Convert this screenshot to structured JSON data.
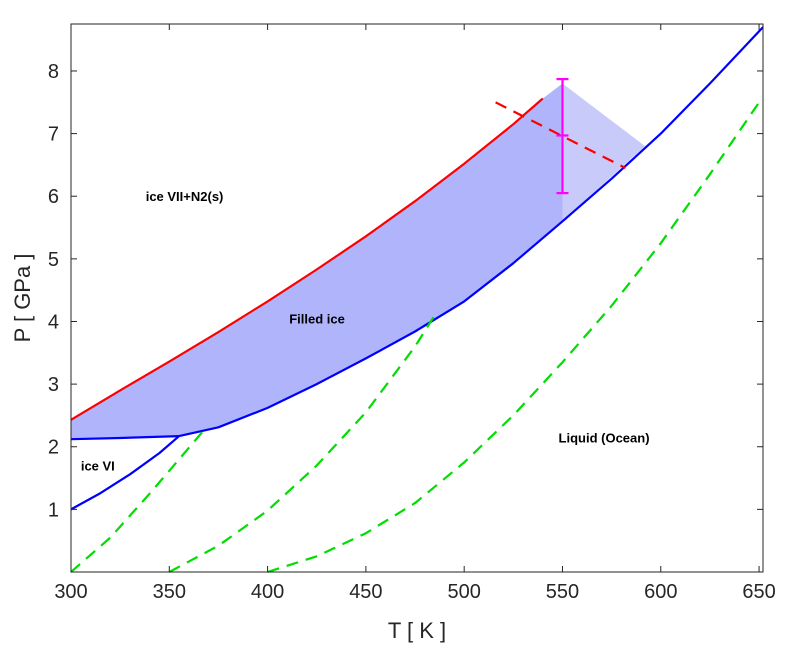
{
  "chart_data": {
    "type": "line",
    "title": "",
    "xlabel": "T [ K ]",
    "ylabel": "P [ GPa ]",
    "xlim": [
      300,
      652
    ],
    "ylim": [
      0,
      8.75
    ],
    "xticks": [
      300,
      350,
      400,
      450,
      500,
      550,
      600,
      650
    ],
    "yticks": [
      1,
      2,
      3,
      4,
      5,
      6,
      7,
      8
    ],
    "grid": false,
    "legend": "none",
    "region_labels": [
      {
        "text": "ice VII+N2(s)",
        "x": 338,
        "y": 6.0
      },
      {
        "text": "Filled ice",
        "x": 411,
        "y": 4.05
      },
      {
        "text": "ice VI",
        "x": 305,
        "y": 1.7
      },
      {
        "text": "Liquid (Ocean)",
        "x": 548,
        "y": 2.15
      }
    ],
    "series": [
      {
        "role": "upper-boundary",
        "color": "#ff0000",
        "style": "solid",
        "x": [
          300,
          325,
          350,
          375,
          400,
          425,
          450,
          475,
          500,
          525,
          540
        ],
        "y": [
          2.43,
          2.9,
          3.36,
          3.83,
          4.32,
          4.83,
          5.36,
          5.92,
          6.52,
          7.15,
          7.56
        ]
      },
      {
        "role": "lower-boundary",
        "color": "#0000ff",
        "style": "solid",
        "x": [
          355,
          375,
          400,
          425,
          450,
          475,
          500,
          525,
          550,
          575,
          600,
          625,
          652
        ],
        "y": [
          2.17,
          2.31,
          2.62,
          3.0,
          3.41,
          3.84,
          4.32,
          4.93,
          5.6,
          6.28,
          7.0,
          7.8,
          8.7
        ]
      },
      {
        "role": "ice-VI-boundary",
        "color": "#0000ff",
        "style": "solid",
        "x": [
          300,
          325,
          355
        ],
        "y": [
          2.12,
          2.14,
          2.17
        ]
      },
      {
        "role": "ice-VI-melting",
        "color": "#0000ff",
        "style": "solid",
        "x": [
          300,
          315,
          330,
          345,
          355
        ],
        "y": [
          1.0,
          1.26,
          1.56,
          1.9,
          2.17
        ]
      },
      {
        "role": "geotherm-1",
        "color": "#00dd00",
        "style": "dashed",
        "x": [
          300,
          320,
          340,
          355,
          368
        ],
        "y": [
          0.0,
          0.55,
          1.25,
          1.8,
          2.28
        ]
      },
      {
        "role": "geotherm-2",
        "color": "#00dd00",
        "style": "dashed",
        "x": [
          350,
          375,
          400,
          425,
          450,
          475,
          486
        ],
        "y": [
          0.0,
          0.42,
          0.98,
          1.7,
          2.55,
          3.6,
          4.15
        ]
      },
      {
        "role": "geotherm-3",
        "color": "#00dd00",
        "style": "dashed",
        "x": [
          400,
          425,
          450,
          475,
          500,
          525,
          550,
          575,
          600,
          625,
          650
        ],
        "y": [
          0.0,
          0.25,
          0.62,
          1.1,
          1.75,
          2.5,
          3.35,
          4.25,
          5.25,
          6.35,
          7.5
        ]
      },
      {
        "role": "estimate-line",
        "color": "#ff0000",
        "style": "dashed",
        "x": [
          516,
          582
        ],
        "y": [
          7.5,
          6.45
        ]
      }
    ],
    "error_bar": {
      "color": "#ff00ff",
      "x": 550,
      "y": 6.97,
      "low": 6.05,
      "high": 7.87
    },
    "fills": [
      {
        "role": "filled-ice-region",
        "color": "#b0b4fb",
        "boundary": "between upper and lower boundaries"
      },
      {
        "role": "uncertainty-triangle",
        "color": "#c8caf9",
        "x": [
          550,
          550,
          592
        ],
        "y": [
          5.6,
          7.8,
          6.8
        ]
      }
    ]
  }
}
